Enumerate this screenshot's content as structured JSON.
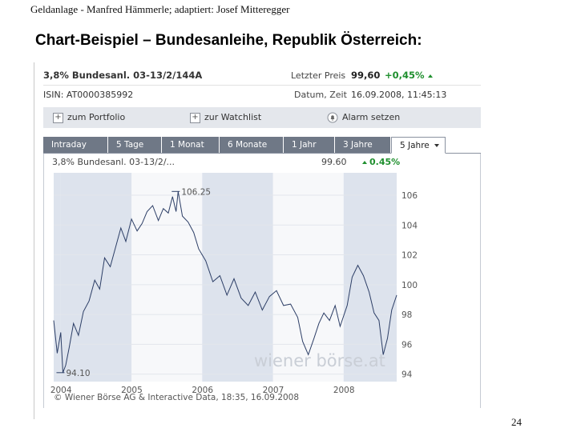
{
  "header": {
    "text": "Geldanlage - Manfred Hämmerle; adaptiert: Josef Mitteregger"
  },
  "slide_title": "Chart-Beispiel – Bundesanleihe, Republik Österreich:",
  "page_number": "24",
  "quote": {
    "name": "3,8% Bundesanl. 03-13/2/144A",
    "last_price_label": "Letzter Preis",
    "last_price": "99,60",
    "change": "+0,45%",
    "isin": "ISIN: AT0000385992",
    "datetime_label": "Datum, Zeit",
    "datetime": "16.09.2008, 11:45:13"
  },
  "toolbar": {
    "portfolio": "zum Portfolio",
    "watchlist": "zur Watchlist",
    "alarm": "Alarm setzen"
  },
  "tabs": [
    "Intraday",
    "5 Tage",
    "1 Monat",
    "6 Monate",
    "1 Jahr",
    "3 Jahre",
    "5 Jahre"
  ],
  "chart_info": {
    "name": "3,8% Bundesanl. 03-13/2/...",
    "value": "99.60",
    "change": "0.45%"
  },
  "colors": {
    "tab_bg": "#6f7886",
    "toolbar_bg": "#e4e7ec",
    "line": "#2c3e66",
    "band": "#dde3ed",
    "positive": "#1f8f2e"
  },
  "chart_data": {
    "type": "line",
    "x_start": 2003.9,
    "x_end": 2008.75,
    "ylim": [
      93.5,
      107.5
    ],
    "yticks": [
      94,
      96,
      98,
      100,
      102,
      104,
      106
    ],
    "xticks": [
      "2004",
      "2005",
      "2006",
      "2007",
      "2008"
    ],
    "xtick_values": [
      2004,
      2005,
      2006,
      2007,
      2008
    ],
    "annotations": [
      {
        "label": "106.25",
        "x": 2005.66,
        "y": 106.25
      },
      {
        "label": "94.10",
        "x": 2004.03,
        "y": 94.1
      }
    ],
    "watermark": "wiener börse.at",
    "copyright": "© Wiener Börse AG & Interactive Data, 18:35, 16.09.2008",
    "series": [
      {
        "x": [
          2003.9,
          2003.95,
          2004.0,
          2004.03,
          2004.07,
          2004.12,
          2004.18,
          2004.25,
          2004.32,
          2004.4,
          2004.48,
          2004.55,
          2004.62,
          2004.7,
          2004.78,
          2004.85,
          2004.92,
          2005.0,
          2005.08,
          2005.15,
          2005.22,
          2005.3,
          2005.38,
          2005.45,
          2005.52,
          2005.58,
          2005.63,
          2005.66,
          2005.72,
          2005.8,
          2005.88,
          2005.95,
          2006.05,
          2006.15,
          2006.25,
          2006.35,
          2006.45,
          2006.55,
          2006.65,
          2006.75,
          2006.85,
          2006.95,
          2007.05,
          2007.15,
          2007.25,
          2007.35,
          2007.42,
          2007.5,
          2007.58,
          2007.65,
          2007.72,
          2007.8,
          2007.88,
          2007.95,
          2008.05,
          2008.12,
          2008.2,
          2008.28,
          2008.36,
          2008.43,
          2008.5,
          2008.56,
          2008.62,
          2008.68,
          2008.75
        ],
        "y": [
          97.6,
          95.4,
          96.8,
          94.1,
          94.6,
          95.8,
          97.4,
          96.6,
          98.2,
          98.9,
          100.3,
          99.7,
          101.8,
          101.2,
          102.6,
          103.8,
          102.9,
          104.4,
          103.6,
          104.1,
          104.9,
          105.3,
          104.3,
          105.1,
          104.8,
          105.9,
          104.9,
          106.25,
          104.6,
          104.2,
          103.5,
          102.4,
          101.6,
          100.2,
          100.6,
          99.3,
          100.4,
          99.1,
          98.6,
          99.5,
          98.3,
          99.2,
          99.6,
          98.6,
          98.7,
          97.8,
          96.2,
          95.3,
          96.4,
          97.4,
          98.1,
          97.6,
          98.6,
          97.2,
          98.6,
          100.5,
          101.3,
          100.6,
          99.5,
          98.1,
          97.6,
          95.3,
          96.4,
          98.3,
          99.3
        ]
      }
    ]
  }
}
